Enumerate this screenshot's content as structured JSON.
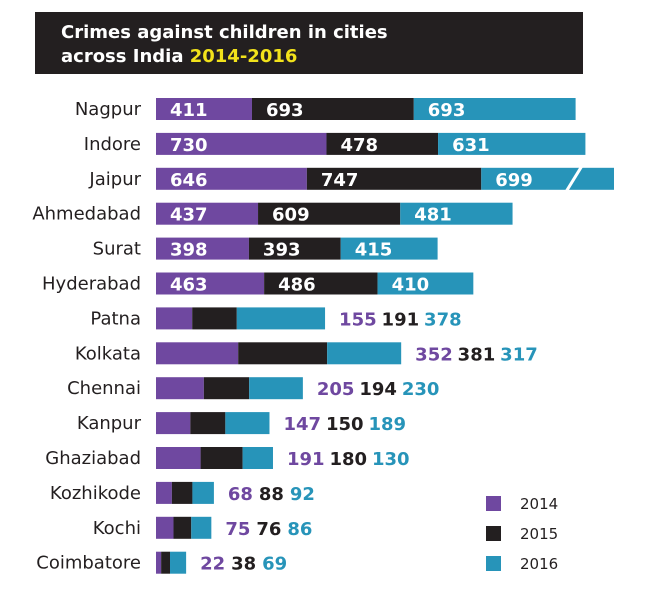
{
  "header": {
    "title_line1": "Crimes against children in cities",
    "title_line2_prefix": "across India ",
    "title_line2_highlight": "2014-2016"
  },
  "colors": {
    "2014": "#6f48a0",
    "2015": "#231f20",
    "2016": "#2794b9",
    "title_bg": "#231f20",
    "title_highlight": "#f2e21b"
  },
  "chart_data": {
    "type": "bar",
    "orientation": "horizontal",
    "stacked": true,
    "title": "Crimes against children in cities across India 2014-2016",
    "categories": [
      "Nagpur",
      "Indore",
      "Jaipur",
      "Ahmedabad",
      "Surat",
      "Hyderabad",
      "Patna",
      "Kolkata",
      "Chennai",
      "Kanpur",
      "Ghaziabad",
      "Kozhikode",
      "Kochi",
      "Coimbatore"
    ],
    "series": [
      {
        "name": "2014",
        "values": [
          411,
          730,
          646,
          437,
          398,
          463,
          155,
          352,
          205,
          147,
          191,
          68,
          75,
          22
        ]
      },
      {
        "name": "2015",
        "values": [
          693,
          478,
          747,
          609,
          393,
          486,
          191,
          381,
          194,
          150,
          180,
          88,
          76,
          38
        ]
      },
      {
        "name": "2016",
        "values": [
          693,
          631,
          699,
          481,
          415,
          410,
          378,
          317,
          230,
          189,
          130,
          92,
          86,
          69
        ]
      }
    ],
    "labels_inside_bars": [
      true,
      true,
      true,
      true,
      true,
      true,
      false,
      false,
      false,
      false,
      false,
      false,
      false,
      false
    ],
    "axis_break_on": "Jaipur",
    "legend": {
      "position": "bottom-right",
      "entries": [
        "2014",
        "2015",
        "2016"
      ]
    },
    "grid": false
  }
}
